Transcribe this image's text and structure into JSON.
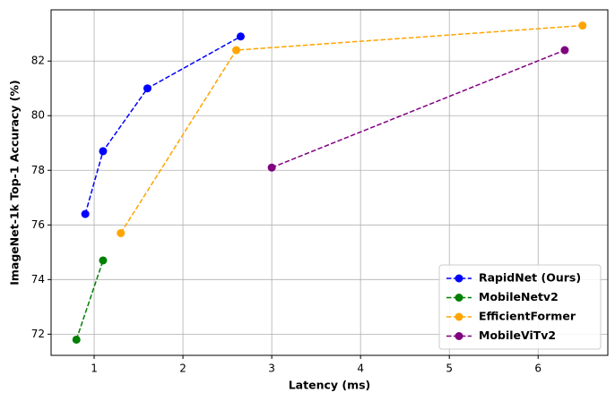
{
  "chart_data": {
    "type": "line",
    "x_label": "Latency (ms)",
    "y_label": "ImageNet-1k Top-1 Accuracy (%)",
    "xlim": [
      0.515,
      6.785
    ],
    "xticks": [
      1,
      2,
      3,
      4,
      5,
      6
    ],
    "ylim": [
      71.225,
      83.875
    ],
    "yticks": [
      72,
      74,
      76,
      78,
      80,
      82
    ],
    "grid": true,
    "legend": "lower right",
    "series": [
      {
        "name": "RapidNet (Ours)",
        "color": "#0000ff",
        "x": [
          0.9,
          1.1,
          1.6,
          2.65
        ],
        "values": [
          76.4,
          78.7,
          81.0,
          82.9
        ]
      },
      {
        "name": "MobileNetv2",
        "color": "#008000",
        "x": [
          0.8,
          1.1
        ],
        "values": [
          71.8,
          74.7
        ]
      },
      {
        "name": "EfficientFormer",
        "color": "#ffa500",
        "x": [
          1.3,
          2.6,
          6.5
        ],
        "values": [
          75.7,
          82.4,
          83.3
        ]
      },
      {
        "name": "MobileViTv2",
        "color": "#800080",
        "x": [
          3.0,
          6.3
        ],
        "values": [
          78.1,
          82.4
        ]
      }
    ]
  }
}
